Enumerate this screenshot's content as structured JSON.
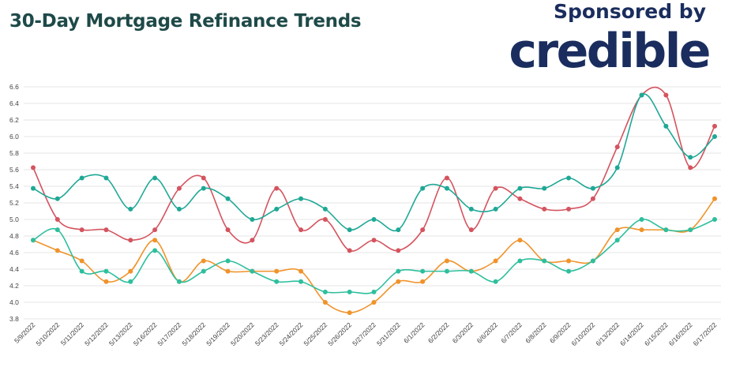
{
  "header": {
    "title": "30-Day Mortgage Refinance Trends",
    "sponsor_text": "Sponsored by",
    "sponsor_logo": "credible"
  },
  "chart_data": {
    "type": "line",
    "title": "30-Day Mortgage Refinance Trends",
    "xlabel": "",
    "ylabel": "",
    "ylim": [
      3.8,
      6.6
    ],
    "yticks": [
      "6.6",
      "6.4",
      "6.2",
      "6.0",
      "5.8",
      "5.6",
      "5.4",
      "5.2",
      "5.0",
      "4.8",
      "4.6",
      "4.4",
      "4.2",
      "4.0",
      "3.8"
    ],
    "grid": true,
    "legend": "none",
    "categories": [
      "5/9/2022",
      "5/10/2022",
      "5/11/2022",
      "5/12/2022",
      "5/13/2022",
      "5/16/2022",
      "5/17/2022",
      "5/18/2022",
      "5/19/2022",
      "5/20/2022",
      "5/23/2022",
      "5/24/2022",
      "5/25/2022",
      "5/26/2022",
      "5/27/2022",
      "5/31/2022",
      "6/1/2022",
      "6/2/2022",
      "6/3/2022",
      "6/6/2022",
      "6/7/2022",
      "6/8/2022",
      "6/9/2022",
      "6/10/2022",
      "6/13/2022",
      "6/14/2022",
      "6/15/2022",
      "6/16/2022",
      "6/17/2022"
    ],
    "series": [
      {
        "color": "#d4545f",
        "values": [
          5.625,
          5.0,
          4.875,
          4.875,
          4.75,
          4.875,
          5.375,
          5.5,
          4.875,
          4.75,
          5.375,
          4.875,
          5.0,
          4.625,
          4.75,
          4.625,
          4.875,
          5.5,
          4.875,
          5.375,
          5.25,
          5.125,
          5.125,
          5.25,
          5.875,
          6.5,
          6.5,
          5.625,
          6.125
        ]
      },
      {
        "color": "#1fa896",
        "values": [
          5.375,
          5.25,
          5.5,
          5.5,
          5.125,
          5.5,
          5.125,
          5.375,
          5.25,
          5.0,
          5.125,
          5.25,
          5.125,
          4.875,
          5.0,
          4.875,
          5.375,
          5.375,
          5.125,
          5.125,
          5.375,
          5.375,
          5.5,
          5.375,
          5.625,
          6.5,
          6.125,
          5.75,
          6.0
        ]
      },
      {
        "color": "#f0932a",
        "values": [
          4.75,
          4.625,
          4.5,
          4.25,
          4.375,
          4.75,
          4.25,
          4.5,
          4.375,
          4.375,
          4.375,
          4.375,
          4.0,
          3.875,
          4.0,
          4.25,
          4.25,
          4.5,
          4.375,
          4.5,
          4.75,
          4.5,
          4.5,
          4.5,
          4.875,
          4.875,
          4.875,
          4.875,
          5.25
        ]
      },
      {
        "color": "#2ebf9d",
        "values": [
          4.75,
          4.875,
          4.375,
          4.375,
          4.25,
          4.625,
          4.25,
          4.375,
          4.5,
          4.375,
          4.25,
          4.25,
          4.125,
          4.125,
          4.125,
          4.375,
          4.375,
          4.375,
          4.375,
          4.25,
          4.5,
          4.5,
          4.375,
          4.5,
          4.75,
          5.0,
          4.875,
          4.875,
          5.0
        ]
      }
    ]
  }
}
